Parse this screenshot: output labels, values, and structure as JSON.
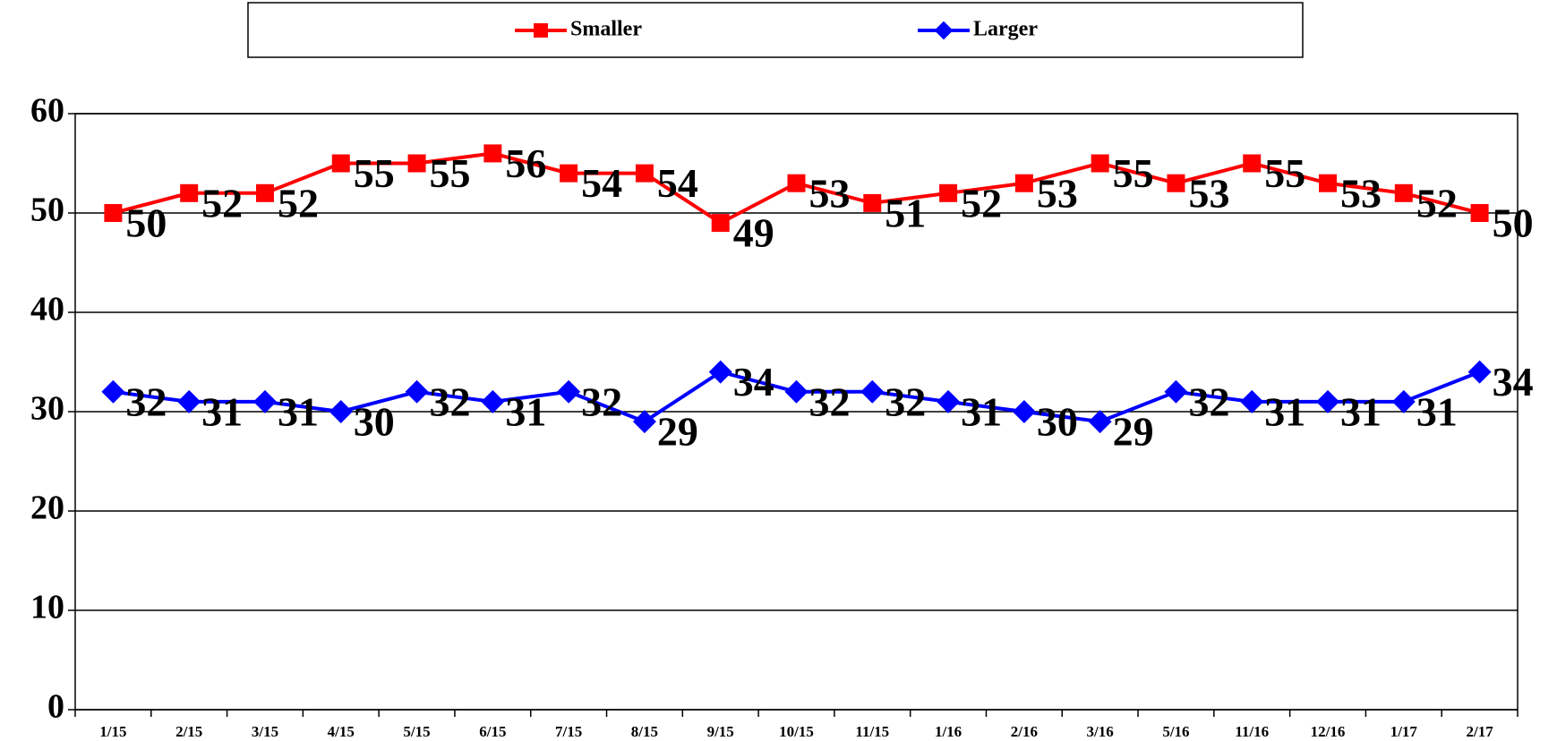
{
  "chart_data": {
    "type": "line",
    "categories": [
      "1/15",
      "2/15",
      "3/15",
      "4/15",
      "5/15",
      "6/15",
      "7/15",
      "8/15",
      "9/15",
      "10/15",
      "11/15",
      "1/16",
      "2/16",
      "3/16",
      "5/16",
      "11/16",
      "12/16",
      "1/17",
      "2/17"
    ],
    "series": [
      {
        "name": "Smaller",
        "color": "#ff0000",
        "marker": "square",
        "values": [
          50,
          52,
          52,
          55,
          55,
          56,
          54,
          54,
          49,
          53,
          51,
          52,
          53,
          55,
          53,
          55,
          53,
          52,
          50
        ]
      },
      {
        "name": "Larger",
        "color": "#0000ff",
        "marker": "diamond",
        "values": [
          32,
          31,
          31,
          30,
          32,
          31,
          32,
          29,
          34,
          32,
          32,
          31,
          30,
          29,
          32,
          31,
          31,
          31,
          34
        ]
      }
    ],
    "ylim": [
      0,
      60
    ],
    "yticks": [
      0,
      10,
      20,
      30,
      40,
      50,
      60
    ],
    "grid": true,
    "legend": "top"
  }
}
